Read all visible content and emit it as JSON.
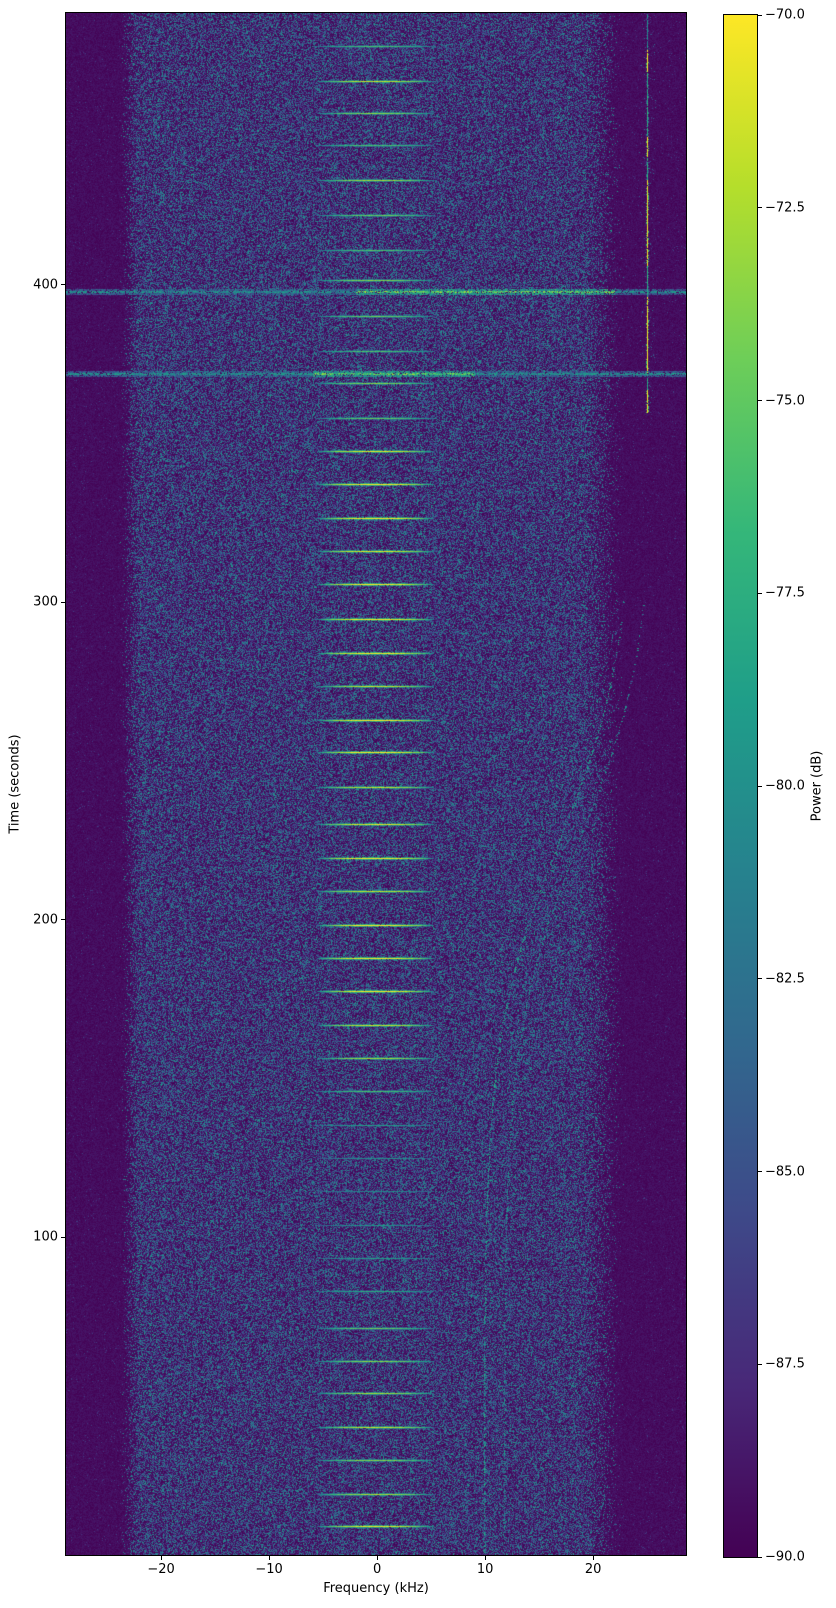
{
  "figure": {
    "kind": "spectrogram-figure",
    "background_color": "#ffffff",
    "text_color": "#000000"
  },
  "chart_data": {
    "type": "heatmap",
    "title": "",
    "xlabel": "Frequency (kHz)",
    "ylabel": "Time (seconds)",
    "colorbar_label": "Power (dB)",
    "xlim": [
      -28.8,
      28.6
    ],
    "ylim": [
      0,
      485.5
    ],
    "clim": [
      -90.0,
      -70.0
    ],
    "grid": false,
    "x_ticks": {
      "values": [
        -20,
        -10,
        0,
        10,
        20
      ],
      "labels": [
        "−20",
        "−10",
        "0",
        "10",
        "20"
      ]
    },
    "y_ticks": {
      "values": [
        100,
        200,
        300,
        400
      ],
      "labels": [
        "100",
        "200",
        "300",
        "400"
      ]
    },
    "colorbar_ticks": {
      "values": [
        -70.0,
        -72.5,
        -75.0,
        -77.5,
        -80.0,
        -82.5,
        -85.0,
        -87.5,
        -90.0
      ],
      "labels": [
        "−70.0",
        "−72.5",
        "−75.0",
        "−77.5",
        "−80.0",
        "−82.5",
        "−85.0",
        "−87.5",
        "−90.0"
      ]
    },
    "colormap": {
      "name": "viridis",
      "stops": [
        "#440154",
        "#482878",
        "#3e4989",
        "#31688e",
        "#26828e",
        "#1f9e89",
        "#35b779",
        "#6ece58",
        "#b5de2b",
        "#fde725"
      ]
    },
    "noise": {
      "floor_db": -90,
      "band_f_lo": -22.8,
      "band_f_hi": 20.8,
      "edge_width_lo": 2.2,
      "edge_width_hi": 4.5,
      "speckle_prob": 0.55,
      "bright_speckle_prob": 0.045
    },
    "features": {
      "bursts": {
        "description": "periodic burst transmissions centered near 0 kHz",
        "f_lo": -5.6,
        "f_hi": 5.2,
        "approx_period_s": 10.5,
        "events": [
          [
            9.1,
            0.95
          ],
          [
            19.2,
            0.85
          ],
          [
            29.9,
            0.8
          ],
          [
            40.3,
            0.9
          ],
          [
            50.9,
            0.85
          ],
          [
            61,
            0.8
          ],
          [
            71.4,
            0.75
          ],
          [
            83,
            0.6
          ],
          [
            93.5,
            0.55
          ],
          [
            104,
            0.5
          ],
          [
            114.5,
            0.45
          ],
          [
            125,
            0.5
          ],
          [
            135.5,
            0.55
          ],
          [
            146,
            0.7
          ],
          [
            156.5,
            0.85
          ],
          [
            167,
            0.9
          ],
          [
            177.5,
            1
          ],
          [
            188,
            1
          ],
          [
            198.5,
            1
          ],
          [
            209,
            0.9
          ],
          [
            219.5,
            1
          ],
          [
            230,
            0.95
          ],
          [
            241.8,
            0.9
          ],
          [
            252.8,
            1
          ],
          [
            262.9,
            1
          ],
          [
            273.6,
            0.9
          ],
          [
            284,
            1
          ],
          [
            294.7,
            1
          ],
          [
            305.6,
            1
          ],
          [
            316,
            0.95
          ],
          [
            326.4,
            1
          ],
          [
            337.1,
            1
          ],
          [
            347.6,
            0.95
          ],
          [
            358,
            0.75
          ],
          [
            369,
            0.8
          ],
          [
            379,
            0.7
          ],
          [
            390,
            0.75
          ],
          [
            401.5,
            0.8
          ],
          [
            411,
            0.7
          ],
          [
            422,
            0.75
          ],
          [
            433,
            0.85
          ],
          [
            444,
            0.7
          ],
          [
            454,
            0.8
          ],
          [
            464,
            0.9
          ],
          [
            475,
            0.7
          ]
        ]
      },
      "broadband_streaks": [
        {
          "t": 372,
          "intensity": 0.85,
          "bright_f_lo": -6,
          "bright_f_hi": 9
        },
        {
          "t": 398,
          "intensity": 0.9,
          "bright_f_lo": -2,
          "bright_f_hi": 22
        },
        {
          "t": 290.5,
          "intensity": 0.18,
          "thin": true
        }
      ],
      "doppler_track": {
        "description": "S-shaped drifting carrier pair on right side",
        "f_base": 9.85,
        "amplitude": 14,
        "t_mid": 225,
        "t_scale": 30,
        "t_min": 0,
        "t_max": 302,
        "fade_start": 268,
        "offsets": [
          0,
          1.85,
          -1.7
        ],
        "strengths": [
          0.5,
          0.42,
          0.2
        ]
      },
      "carrier_line": {
        "f": 25.0,
        "t_lo": 360,
        "t_hi": 485.5,
        "bright_segments": [
          [
            360,
            367
          ],
          [
            372,
            396
          ],
          [
            406,
            433
          ],
          [
            440,
            447
          ],
          [
            467,
            474
          ]
        ]
      },
      "burst_frame_lines": {
        "f_values": [
          -5.5,
          5.15
        ],
        "segments": [
          {
            "t_lo": 5,
            "t_hi": 170,
            "prob": 0.22
          },
          {
            "t_lo": 358,
            "t_hi": 480,
            "prob": 0.12
          }
        ]
      },
      "faint_vertical_dashes": [
        {
          "f": 6.3,
          "t_lo": 0,
          "t_hi": 45,
          "prob": 0.2
        },
        {
          "f": 14.3,
          "t_lo": 0,
          "t_hi": 38,
          "prob": 0.18
        },
        {
          "f": 16.9,
          "t_lo": 0,
          "t_hi": 30,
          "prob": 0.14
        }
      ]
    }
  }
}
